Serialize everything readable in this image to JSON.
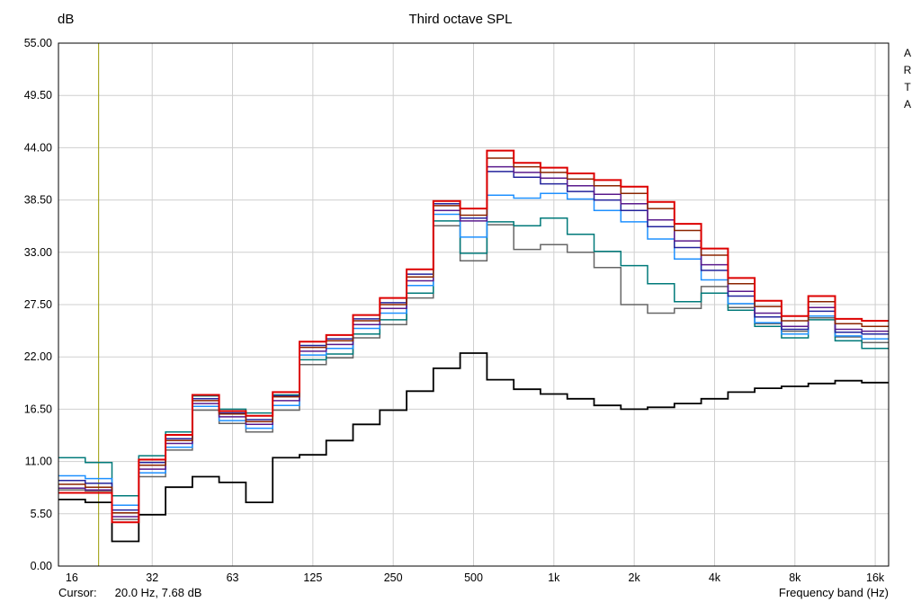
{
  "chart": {
    "title": "Third octave SPL",
    "y_unit": "dB",
    "x_label": "Frequency band (Hz)",
    "brand": "ARTA",
    "cursor": {
      "label": "Cursor:",
      "value": "20.0 Hz, 7.68 dB",
      "freq_hz": 20.0,
      "level_db": 7.68
    },
    "colors": {
      "grid": "#cfcfcf",
      "plot_border": "#000000",
      "cursor_line": "#9a9a00",
      "background": "#ffffff"
    },
    "y_ticks": [
      "55.00",
      "49.50",
      "44.00",
      "38.50",
      "33.00",
      "27.50",
      "22.00",
      "16.50",
      "11.00",
      "5.50",
      "0.00"
    ],
    "x_tick_labels": [
      "16",
      "32",
      "63",
      "125",
      "250",
      "500",
      "1k",
      "2k",
      "4k",
      "8k",
      "16k"
    ],
    "x_tick_freqs": [
      16,
      32,
      63,
      125,
      250,
      500,
      1000,
      2000,
      4000,
      8000,
      16000
    ]
  },
  "chart_data": {
    "type": "line",
    "subtype": "third-octave-step",
    "title": "Third octave SPL",
    "xlabel": "Frequency band (Hz)",
    "ylabel": "dB",
    "x_scale": "log",
    "ylim": [
      0,
      55
    ],
    "y_tick_step": 5.5,
    "grid": true,
    "legend": "none",
    "bands_hz": [
      16,
      20,
      25,
      31.5,
      40,
      50,
      63,
      80,
      100,
      125,
      160,
      200,
      250,
      315,
      400,
      500,
      630,
      800,
      1000,
      1250,
      1600,
      2000,
      2500,
      3150,
      4000,
      5000,
      6300,
      8000,
      10000,
      12500,
      16000
    ],
    "series": [
      {
        "name": "gray",
        "color": "#666666",
        "width": 1.5,
        "values": [
          8.0,
          7.9,
          4.9,
          9.4,
          12.2,
          16.4,
          15.0,
          14.1,
          16.4,
          21.2,
          21.9,
          24.0,
          25.4,
          28.2,
          35.8,
          32.1,
          35.9,
          33.3,
          33.8,
          33.0,
          31.4,
          27.5,
          26.6,
          27.1,
          29.4,
          27.2,
          25.5,
          24.7,
          26.1,
          24.1,
          23.5
        ]
      },
      {
        "name": "teal",
        "color": "#007a7a",
        "width": 1.5,
        "values": [
          11.4,
          10.9,
          7.4,
          11.6,
          14.1,
          17.9,
          16.5,
          16.1,
          18.0,
          21.7,
          22.3,
          24.4,
          25.9,
          28.7,
          36.3,
          32.9,
          36.2,
          35.8,
          36.6,
          34.9,
          33.1,
          31.6,
          29.7,
          27.8,
          28.7,
          26.9,
          25.2,
          24.0,
          25.9,
          23.7,
          22.9
        ]
      },
      {
        "name": "blue",
        "color": "#1e90ff",
        "width": 1.5,
        "values": [
          9.5,
          9.2,
          6.4,
          9.8,
          12.5,
          16.8,
          15.3,
          14.5,
          16.9,
          22.2,
          22.9,
          25.0,
          26.6,
          29.5,
          37.0,
          34.6,
          39.0,
          38.7,
          39.2,
          38.6,
          37.4,
          36.2,
          34.4,
          32.3,
          30.1,
          27.6,
          25.6,
          24.4,
          26.3,
          24.2,
          23.9
        ]
      },
      {
        "name": "navy",
        "color": "#23239c",
        "width": 1.5,
        "values": [
          9.0,
          8.7,
          5.9,
          10.9,
          13.4,
          17.6,
          16.1,
          15.4,
          17.9,
          23.2,
          23.9,
          26.0,
          27.7,
          30.7,
          38.1,
          36.6,
          41.5,
          40.9,
          40.2,
          39.4,
          38.5,
          37.4,
          35.7,
          33.5,
          31.1,
          28.4,
          26.2,
          24.9,
          26.8,
          24.6,
          24.4
        ]
      },
      {
        "name": "purple",
        "color": "#5a1a8c",
        "width": 1.5,
        "values": [
          8.2,
          8.0,
          5.2,
          10.2,
          12.9,
          17.1,
          15.7,
          14.9,
          17.4,
          22.6,
          23.3,
          25.4,
          27.1,
          30.0,
          37.4,
          36.3,
          42.0,
          41.4,
          40.8,
          40.0,
          39.1,
          38.1,
          36.4,
          34.2,
          31.7,
          28.9,
          26.6,
          25.2,
          27.2,
          24.9,
          24.7
        ]
      },
      {
        "name": "maroon",
        "color": "#8b2500",
        "width": 1.5,
        "values": [
          8.6,
          8.3,
          5.6,
          10.6,
          13.2,
          17.4,
          16.0,
          15.2,
          17.8,
          23.0,
          23.7,
          25.8,
          27.5,
          30.4,
          37.9,
          36.9,
          42.9,
          42.0,
          41.4,
          40.7,
          40.0,
          39.2,
          37.6,
          35.3,
          32.7,
          29.7,
          27.3,
          25.8,
          27.8,
          25.5,
          25.2
        ]
      },
      {
        "name": "black",
        "color": "#000000",
        "width": 1.8,
        "values": [
          7.0,
          6.7,
          2.6,
          5.4,
          8.3,
          9.4,
          8.8,
          6.7,
          11.4,
          11.7,
          13.2,
          14.9,
          16.4,
          18.4,
          20.8,
          22.4,
          19.6,
          18.6,
          18.1,
          17.6,
          16.9,
          16.5,
          16.7,
          17.1,
          17.6,
          18.3,
          18.7,
          18.9,
          19.2,
          19.5,
          19.3
        ]
      },
      {
        "name": "red",
        "color": "#dd0000",
        "width": 2.0,
        "values": [
          7.7,
          7.7,
          4.6,
          11.2,
          13.8,
          18.0,
          16.3,
          15.8,
          18.3,
          23.6,
          24.3,
          26.4,
          28.2,
          31.2,
          38.4,
          37.6,
          43.7,
          42.4,
          41.9,
          41.3,
          40.6,
          39.9,
          38.3,
          36.0,
          33.4,
          30.3,
          27.9,
          26.3,
          28.4,
          26.0,
          25.8
        ]
      }
    ]
  }
}
